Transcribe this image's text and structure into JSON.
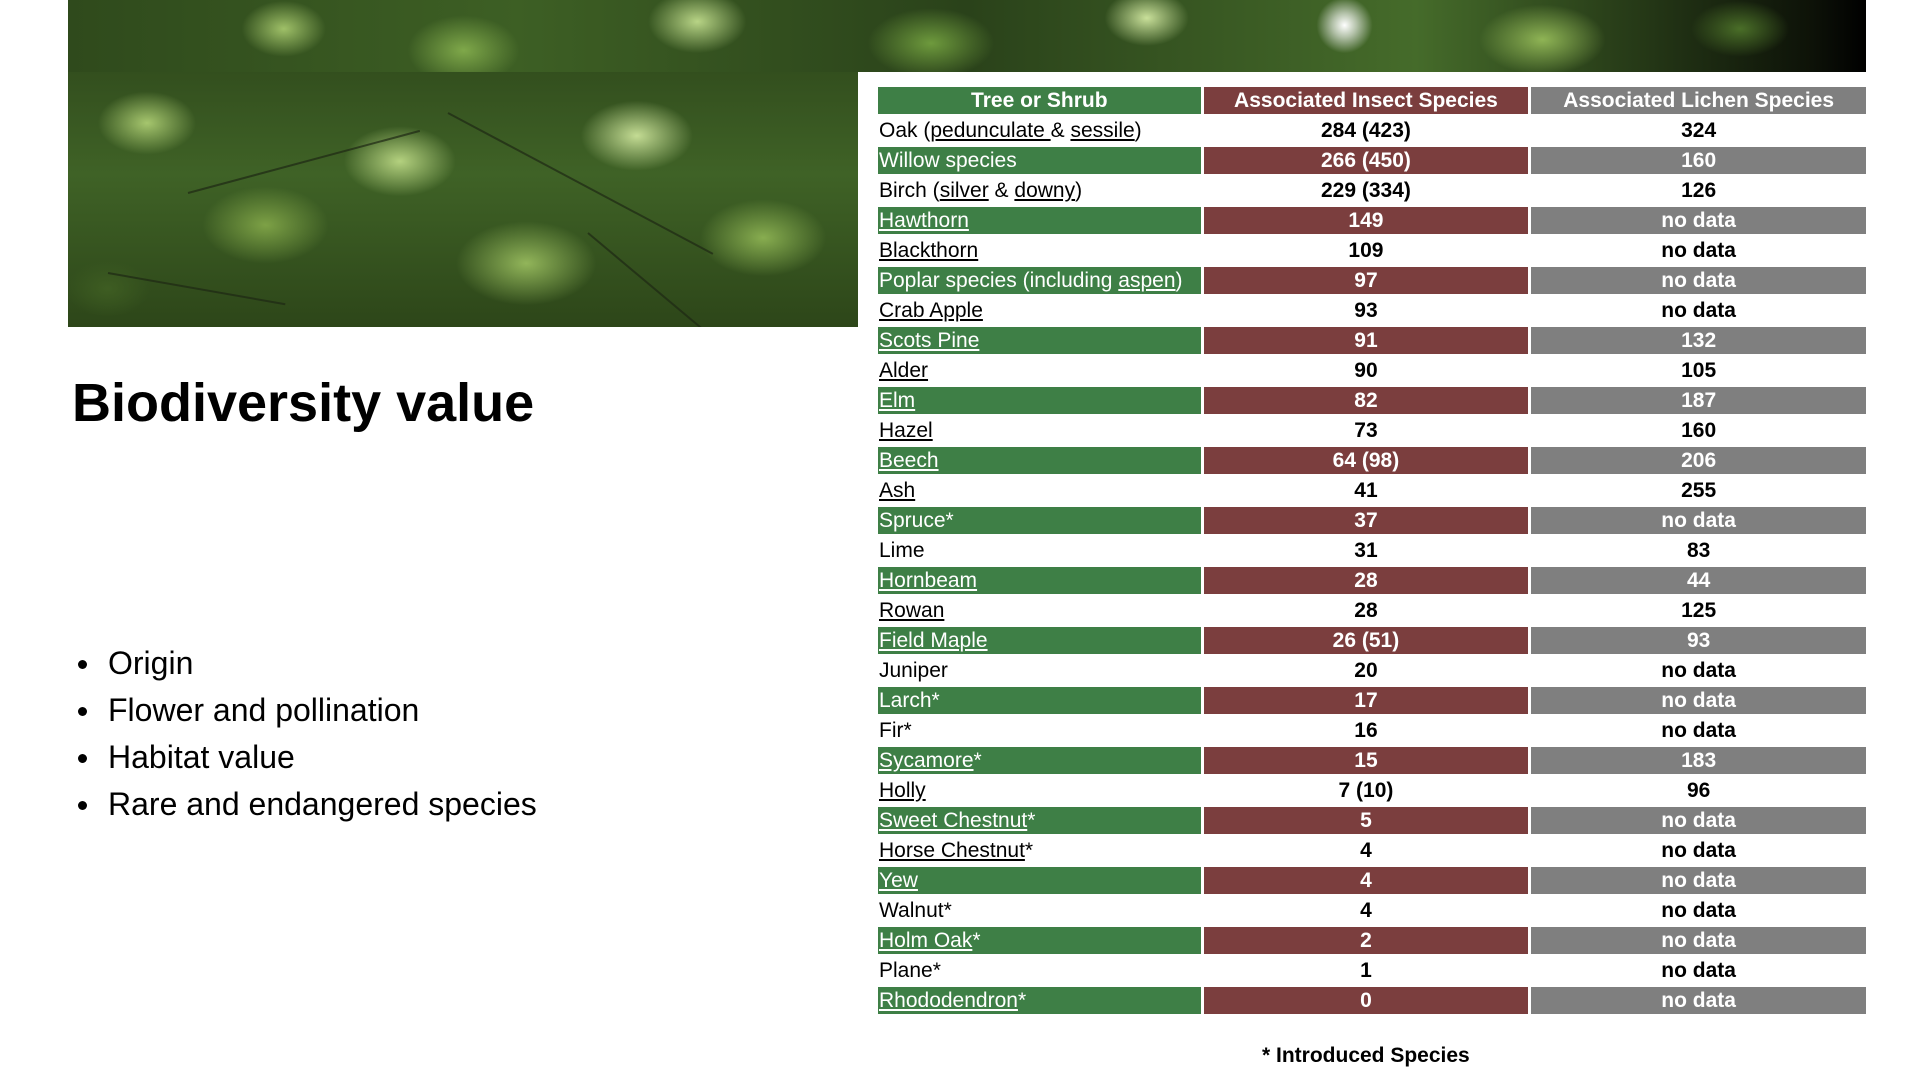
{
  "slide": {
    "title": "Biodiversity value",
    "bullets": [
      "Origin",
      "Flower and pollination",
      "Habitat value",
      "Rare and endangered species"
    ],
    "footnote": "* Introduced Species"
  },
  "colors": {
    "tree_column": "#3e7f46",
    "insect_column": "#7b3e3e",
    "lichen_column": "#7f7f7f"
  },
  "table": {
    "headers": [
      "Tree or Shrub",
      "Associated Insect Species",
      "Associated Lichen Species"
    ],
    "rows": [
      {
        "parts": [
          {
            "t": "Oak ("
          },
          {
            "t": "pedunculate ",
            "link": true
          },
          {
            "t": "& "
          },
          {
            "t": "sessile",
            "link": true
          },
          {
            "t": ")"
          }
        ],
        "insect": "284 (423)",
        "lichen": "324"
      },
      {
        "parts": [
          {
            "t": "Willow species"
          }
        ],
        "insect": "266 (450)",
        "lichen": "160"
      },
      {
        "parts": [
          {
            "t": "Birch ("
          },
          {
            "t": "silver",
            "link": true
          },
          {
            "t": " & "
          },
          {
            "t": "downy",
            "link": true
          },
          {
            "t": ")"
          }
        ],
        "insect": "229 (334)",
        "lichen": "126"
      },
      {
        "parts": [
          {
            "t": "Hawthorn",
            "link": true
          }
        ],
        "insect": "149",
        "lichen": "no data"
      },
      {
        "parts": [
          {
            "t": "Blackthorn",
            "link": true
          }
        ],
        "insect": "109",
        "lichen": "no data"
      },
      {
        "parts": [
          {
            "t": "Poplar species (including "
          },
          {
            "t": "aspen",
            "link": true
          },
          {
            "t": ")"
          }
        ],
        "insect": "97",
        "lichen": "no data"
      },
      {
        "parts": [
          {
            "t": "Crab Apple",
            "link": true
          }
        ],
        "insect": "93",
        "lichen": "no data"
      },
      {
        "parts": [
          {
            "t": "Scots Pine",
            "link": true
          }
        ],
        "insect": "91",
        "lichen": "132"
      },
      {
        "parts": [
          {
            "t": "Alder",
            "link": true
          }
        ],
        "insect": "90",
        "lichen": "105"
      },
      {
        "parts": [
          {
            "t": "Elm",
            "link": true
          }
        ],
        "insect": "82",
        "lichen": "187"
      },
      {
        "parts": [
          {
            "t": "Hazel",
            "link": true
          }
        ],
        "insect": "73",
        "lichen": "160"
      },
      {
        "parts": [
          {
            "t": "Beech",
            "link": true
          }
        ],
        "insect": "64 (98)",
        "lichen": "206"
      },
      {
        "parts": [
          {
            "t": "Ash",
            "link": true
          }
        ],
        "insect": "41",
        "lichen": "255"
      },
      {
        "parts": [
          {
            "t": "Spruce*"
          }
        ],
        "insect": "37",
        "lichen": "no data"
      },
      {
        "parts": [
          {
            "t": "Lime"
          }
        ],
        "insect": "31",
        "lichen": "83"
      },
      {
        "parts": [
          {
            "t": "Hornbeam",
            "link": true
          }
        ],
        "insect": "28",
        "lichen": "44"
      },
      {
        "parts": [
          {
            "t": "Rowan",
            "link": true
          }
        ],
        "insect": "28",
        "lichen": "125"
      },
      {
        "parts": [
          {
            "t": "Field Maple",
            "link": true
          }
        ],
        "insect": "26 (51)",
        "lichen": "93"
      },
      {
        "parts": [
          {
            "t": "Juniper"
          }
        ],
        "insect": "20",
        "lichen": "no data"
      },
      {
        "parts": [
          {
            "t": "Larch*"
          }
        ],
        "insect": "17",
        "lichen": "no data"
      },
      {
        "parts": [
          {
            "t": "Fir*"
          }
        ],
        "insect": "16",
        "lichen": "no data"
      },
      {
        "parts": [
          {
            "t": "Sycamore",
            "link": true
          },
          {
            "t": "*"
          }
        ],
        "insect": "15",
        "lichen": "183"
      },
      {
        "parts": [
          {
            "t": "Holly",
            "link": true
          }
        ],
        "insect": "7 (10)",
        "lichen": "96"
      },
      {
        "parts": [
          {
            "t": "Sweet Chestnut",
            "link": true
          },
          {
            "t": "*"
          }
        ],
        "insect": "5",
        "lichen": "no data"
      },
      {
        "parts": [
          {
            "t": "Horse Chestnut",
            "link": true
          },
          {
            "t": "*"
          }
        ],
        "insect": "4",
        "lichen": "no data"
      },
      {
        "parts": [
          {
            "t": "Yew",
            "link": true
          }
        ],
        "insect": "4",
        "lichen": "no data"
      },
      {
        "parts": [
          {
            "t": "Walnut*"
          }
        ],
        "insect": "4",
        "lichen": "no data"
      },
      {
        "parts": [
          {
            "t": "Holm Oak",
            "link": true
          },
          {
            "t": "*"
          }
        ],
        "insect": "2",
        "lichen": "no data"
      },
      {
        "parts": [
          {
            "t": "Plane*"
          }
        ],
        "insect": "1",
        "lichen": "no data"
      },
      {
        "parts": [
          {
            "t": "Rhododendron",
            "link": true
          },
          {
            "t": "*"
          }
        ],
        "insect": "0",
        "lichen": "no data"
      }
    ]
  }
}
